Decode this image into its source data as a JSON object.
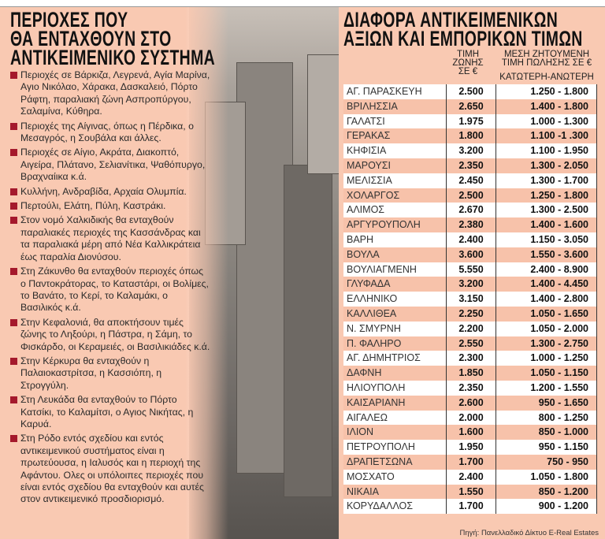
{
  "left_panel": {
    "title_lines": [
      "ΠΕΡΙΟΧΕΣ ΠΟΥ",
      "ΘΑ ΕΝΤΑΧΘΟΥΝ ΣΤΟ",
      "ΑΝΤΙΚΕΙΜΕΝΙΚΟ ΣΥΣΤΗΜΑ"
    ],
    "items": [
      "Περιοχές σε Βάρκιζα, Λεγρενά, Αγία Μαρίνα, Αγιο Νικόλαο, Χάρακα, Δασκαλειό, Πόρτο Ράφτη, παραλιακή ζώνη Ασπροπύργου, Σαλαμίνα, Κύθηρα.",
      "Περιοχές της Αίγινας, όπως η Πέρδικα, ο Μεσαγρός, η Σουβάλα και άλλες.",
      "Περιοχές σε Αίγιο, Ακράτα, Διακοπτό, Αιγείρα, Πλάτανο, Σελιανίτικα, Ψαθόπυργο, Βραχναίικα κ.ά.",
      "Κυλλήνη, Ανδραβίδα, Αρχαία Ολυμπία.",
      "Περτούλι, Ελάτη, Πύλη, Καστράκι.",
      "Στον νομό Χαλκιδικής θα ενταχθούν παραλιακές περιοχές της Κασσάνδρας και τα παραλιακά μέρη από Νέα Καλλικράτεια έως παραλία Διονύσου.",
      "Στη Ζάκυνθο θα ενταχθούν περιοχές όπως ο Παντοκράτορας, το Καταστάρι, οι Βολίμες, το Βανάτο, το Κερί, το Καλαμάκι, ο Βασιλικός κ.ά.",
      "Στην Κεφαλονιά, θα αποκτήσουν τιμές ζώνης το Ληξούρι, η Πάστρα, η Σάμη, το Φισκάρδο, οι Κεραμειές, οι Βασιλικιάδες κ.ά.",
      "Στην Κέρκυρα θα ενταχθούν η Παλαιοκαστρίτσα, η Κασσιόπη, η Στρογγύλη.",
      "Στη Λευκάδα θα ενταχθούν το Πόρτο Κατσίκι, το Καλαμίτσι, ο Αγιος Νικήτας, η Καρυά.",
      "Στη Ρόδο εντός σχεδίου και εντός αντικειμενικού συστήματος είναι η πρωτεύουσα, η Ιαλυσός και η περιοχή της Αφάντου. Ολες οι υπόλοιπες περιοχές που είναι εντός σχεδίου θα ενταχθούν και αυτές στον αντικειμενικό προσδιορισμό."
    ],
    "bullet_color": "#a4192c"
  },
  "right_panel": {
    "title_lines": [
      "ΔΙΑΦΟΡΑ ΑΝΤΙΚΕΙΜΕΝΙΚΩΝ",
      "ΑΞΙΩΝ ΚΑΙ ΕΜΠΟΡΙΚΩΝ ΤΙΜΩΝ"
    ],
    "col_zone": [
      "ΤΙΜΗ",
      "ΖΩΝΗΣ",
      "ΣΕ €"
    ],
    "col_price": [
      "ΜΕΣΗ ΖΗΤΟΥΜΕΝΗ",
      "ΤΙΜΗ ΠΩΛΗΣΗΣ ΣΕ €",
      "ΚΑΤΩΤΕΡΗ-ΑΝΩΤΕΡΗ"
    ],
    "rows": [
      [
        "ΑΓ. ΠΑΡΑΣΚΕΥΗ",
        "2.500",
        "1.250 - 1.800"
      ],
      [
        "ΒΡΙΛΗΣΣΙΑ",
        "2.650",
        "1.400 - 1.800"
      ],
      [
        "ΓΑΛΑΤΣΙ",
        "1.975",
        "1.000 - 1.300"
      ],
      [
        "ΓΕΡΑΚΑΣ",
        "1.800",
        "1.100 -1 .300"
      ],
      [
        "ΚΗΦΙΣΙΑ",
        "3.200",
        "1.100 - 1.950"
      ],
      [
        "ΜΑΡΟΥΣΙ",
        "2.350",
        "1.300 - 2.050"
      ],
      [
        "ΜΕΛΙΣΣΙΑ",
        "2.450",
        "1.300 - 1.700"
      ],
      [
        "ΧΟΛΑΡΓΟΣ",
        "2.500",
        "1.250 - 1.800"
      ],
      [
        "ΑΛΙΜΟΣ",
        "2.670",
        "1.300 - 2.500"
      ],
      [
        "ΑΡΓΥΡΟΥΠΟΛΗ",
        "2.380",
        "1.400 - 1.600"
      ],
      [
        "ΒΑΡΗ",
        "2.400",
        "1.150 - 3.050"
      ],
      [
        "ΒΟΥΛΑ",
        "3.600",
        "1.550 - 3.600"
      ],
      [
        "ΒΟΥΛΙΑΓΜΕΝΗ",
        "5.550",
        "2.400 - 8.900"
      ],
      [
        "ΓΛΥΦΑΔΑ",
        "3.200",
        "1.400 - 4.450"
      ],
      [
        "ΕΛΛΗΝΙΚΟ",
        "3.150",
        "1.400 - 2.800"
      ],
      [
        "ΚΑΛΛΙΘΕΑ",
        "2.250",
        "1.050 - 1.650"
      ],
      [
        "Ν. ΣΜΥΡΝΗ",
        "2.200",
        "1.050 - 2.000"
      ],
      [
        "Π. ΦΑΛΗΡΟ",
        "2.550",
        "1.300 - 2.750"
      ],
      [
        "ΑΓ. ΔΗΜΗΤΡΙΟΣ",
        "2.300",
        "1.000 - 1.250"
      ],
      [
        "ΔΑΦΝΗ",
        "1.850",
        "1.050 - 1.150"
      ],
      [
        "ΗΛΙΟΥΠΟΛΗ",
        "2.350",
        "1.200 - 1.550"
      ],
      [
        "ΚΑΙΣΑΡΙΑΝΗ",
        "2.600",
        "950 - 1.650"
      ],
      [
        "ΑΙΓΑΛΕΩ",
        "2.000",
        "800 - 1.250"
      ],
      [
        "ΙΛΙΟΝ",
        "1.600",
        "850 - 1.000"
      ],
      [
        "ΠΕΤΡΟΥΠΟΛΗ",
        "1.950",
        "950 - 1.150"
      ],
      [
        "ΔΡΑΠΕΤΣΩΝΑ",
        "1.700",
        "750 - 950"
      ],
      [
        "ΜΟΣΧΑΤΟ",
        "2.400",
        "1.050 - 1.800"
      ],
      [
        "ΝΙΚΑΙΑ",
        "1.550",
        "850 - 1.200"
      ],
      [
        "ΚΟΡΥΔΑΛΛΟΣ",
        "1.700",
        "900 - 1.200"
      ]
    ],
    "source": "Πηγή: Πανελλαδικό Δίκτυο E-Real Estates"
  },
  "colors": {
    "panel_bg": "#f9c9b2",
    "row_alt": "#f7c2aa"
  }
}
